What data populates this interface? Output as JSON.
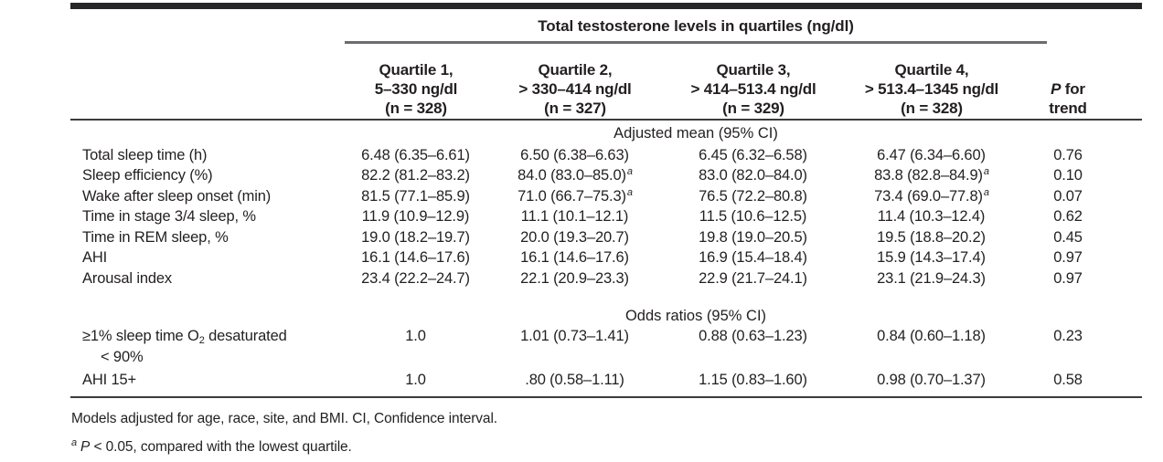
{
  "page": {
    "background": "#ffffff",
    "text_color": "#231f20",
    "rule_color": "#3b3b3d"
  },
  "table": {
    "spanner_title": "Total testosterone levels in quartiles (ng/dl)",
    "quartile_columns": [
      {
        "title": "Quartile 1,",
        "range": "5–330 ng/dl",
        "n": "(n = 328)"
      },
      {
        "title": "Quartile 2,",
        "range": "> 330–414 ng/dl",
        "n": "(n = 327)"
      },
      {
        "title": "Quartile 3,",
        "range": "> 414–513.4 ng/dl",
        "n": "(n = 329)"
      },
      {
        "title": "Quartile 4,",
        "range": "> 513.4–1345 ng/dl",
        "n": "(n = 328)"
      }
    ],
    "p_for_trend": {
      "p": "P",
      "rest": " for",
      "line2": "trend"
    },
    "adjusted_section_title": "Adjusted mean (95% CI)",
    "adjusted_rows": [
      {
        "label": "Total sleep time (h)",
        "q1": {
          "text": "6.48 (6.35–6.61)"
        },
        "q2": {
          "text": "6.50 (6.38–6.63)"
        },
        "q3": {
          "text": "6.45 (6.32–6.58)"
        },
        "q4": {
          "text": "6.47 (6.34–6.60)"
        },
        "p": "0.76"
      },
      {
        "label": "Sleep efficiency (%)",
        "q1": {
          "text": "82.2 (81.2–83.2)"
        },
        "q2": {
          "text": "84.0 (83.0–85.0)",
          "sup": "a"
        },
        "q3": {
          "text": "83.0 (82.0–84.0)"
        },
        "q4": {
          "text": "83.8 (82.8–84.9)",
          "sup": "a"
        },
        "p": "0.10"
      },
      {
        "label": "Wake after sleep onset (min)",
        "q1": {
          "text": "81.5 (77.1–85.9)"
        },
        "q2": {
          "text": "71.0 (66.7–75.3)",
          "sup": "a"
        },
        "q3": {
          "text": "76.5 (72.2–80.8)"
        },
        "q4": {
          "text": "73.4 (69.0–77.8)",
          "sup": "a"
        },
        "p": "0.07"
      },
      {
        "label": "Time in stage 3/4 sleep, %",
        "q1": {
          "text": "11.9 (10.9–12.9)"
        },
        "q2": {
          "text": "11.1 (10.1–12.1)"
        },
        "q3": {
          "text": "11.5 (10.6–12.5)"
        },
        "q4": {
          "text": "11.4 (10.3–12.4)"
        },
        "p": "0.62"
      },
      {
        "label": "Time in REM sleep, %",
        "q1": {
          "text": "19.0 (18.2–19.7)"
        },
        "q2": {
          "text": "20.0 (19.3–20.7)"
        },
        "q3": {
          "text": "19.8 (19.0–20.5)"
        },
        "q4": {
          "text": "19.5 (18.8–20.2)"
        },
        "p": "0.45"
      },
      {
        "label": "AHI",
        "q1": {
          "text": "16.1 (14.6–17.6)"
        },
        "q2": {
          "text": "16.1 (14.6–17.6)"
        },
        "q3": {
          "text": "16.9 (15.4–18.4)"
        },
        "q4": {
          "text": "15.9 (14.3–17.4)"
        },
        "p": "0.97"
      },
      {
        "label": "Arousal index",
        "q1": {
          "text": "23.4 (22.2–24.7)"
        },
        "q2": {
          "text": "22.1 (20.9–23.3)"
        },
        "q3": {
          "text": "22.9 (21.7–24.1)"
        },
        "q4": {
          "text": "23.1 (21.9–24.3)"
        },
        "p": "0.97"
      }
    ],
    "odds_section_title": "Odds ratios (95% CI)",
    "odds_rows": [
      {
        "label_pre": "≥1% sleep time O",
        "label_sub": "2",
        "label_post": " desaturated",
        "label_line2": "< 90%",
        "q1": {
          "text": "1.0"
        },
        "q2": {
          "text": "1.01 (0.73–1.41)"
        },
        "q3": {
          "text": "0.88 (0.63–1.23)"
        },
        "q4": {
          "text": "0.84 (0.60–1.18)"
        },
        "p": "0.23"
      },
      {
        "label": "AHI 15+",
        "q1": {
          "text": "1.0"
        },
        "q2": {
          "text": ".80 (0.58–1.11)"
        },
        "q3": {
          "text": "1.15 (0.83–1.60)"
        },
        "q4": {
          "text": "0.98 (0.70–1.37)"
        },
        "p": "0.58"
      }
    ],
    "footnotes": {
      "line1": "Models adjusted for age, race, site, and BMI. CI, Confidence interval.",
      "line2_sup": "a",
      "line2_p": "P",
      "line2_rest": " < 0.05, compared with the lowest quartile."
    }
  }
}
